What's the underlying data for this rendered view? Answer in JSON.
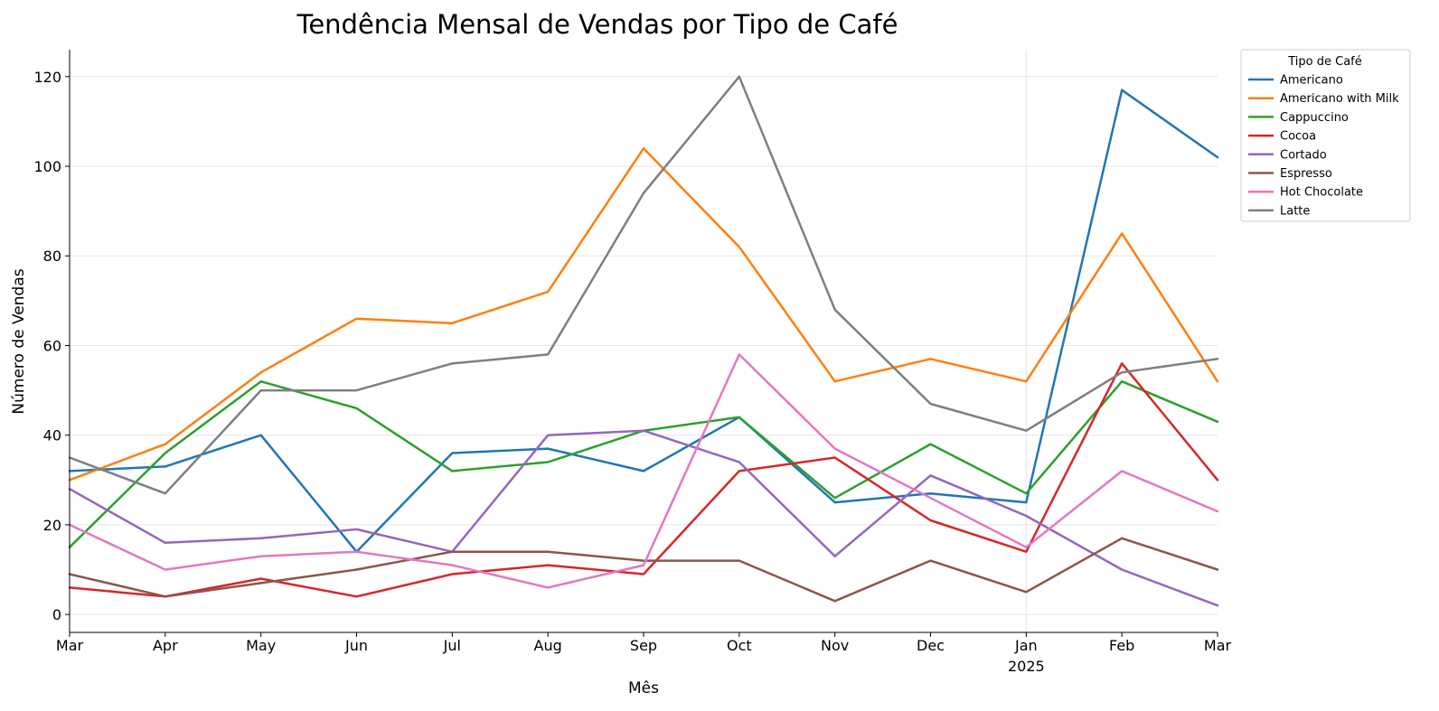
{
  "chart_data": {
    "type": "line",
    "title": "Tendência Mensal de Vendas por Tipo de Café",
    "xlabel": "Mês",
    "ylabel": "Número de Vendas",
    "ylim": [
      -4,
      126
    ],
    "yticks": [
      "0",
      "20",
      "40",
      "60",
      "80",
      "100",
      "120"
    ],
    "categories": [
      "Mar",
      "Apr",
      "May",
      "Jun",
      "Jul",
      "Aug",
      "Sep",
      "Oct",
      "Nov",
      "Dec",
      "Jan",
      "Feb",
      "Mar"
    ],
    "year_marker": {
      "index": 10,
      "label": "2025"
    },
    "grid": "horizontal + vertical at Jan",
    "legend": {
      "title": "Tipo de Café",
      "placement": "outside top-right"
    },
    "series": [
      {
        "name": "Americano",
        "color": "#1f77b4",
        "values": [
          32,
          33,
          40,
          14,
          36,
          37,
          32,
          44,
          25,
          27,
          25,
          117,
          102
        ]
      },
      {
        "name": "Americano with Milk",
        "color": "#ff7f0e",
        "values": [
          30,
          38,
          54,
          66,
          65,
          72,
          104,
          82,
          52,
          57,
          52,
          85,
          52
        ]
      },
      {
        "name": "Cappuccino",
        "color": "#2ca02c",
        "values": [
          15,
          36,
          52,
          46,
          32,
          34,
          41,
          44,
          26,
          38,
          27,
          52,
          43
        ]
      },
      {
        "name": "Cocoa",
        "color": "#d62728",
        "values": [
          6,
          4,
          8,
          4,
          9,
          11,
          9,
          32,
          35,
          21,
          14,
          56,
          30
        ]
      },
      {
        "name": "Cortado",
        "color": "#9467bd",
        "values": [
          28,
          16,
          17,
          19,
          14,
          40,
          41,
          34,
          13,
          31,
          22,
          10,
          2
        ]
      },
      {
        "name": "Espresso",
        "color": "#8c564b",
        "values": [
          9,
          4,
          7,
          10,
          14,
          14,
          12,
          12,
          3,
          12,
          5,
          17,
          10
        ]
      },
      {
        "name": "Hot Chocolate",
        "color": "#e377c2",
        "values": [
          20,
          10,
          13,
          14,
          11,
          6,
          11,
          58,
          37,
          26,
          15,
          32,
          23
        ]
      },
      {
        "name": "Latte",
        "color": "#7f7f7f",
        "values": [
          35,
          27,
          50,
          50,
          56,
          58,
          94,
          120,
          68,
          47,
          41,
          54,
          57
        ]
      }
    ]
  }
}
